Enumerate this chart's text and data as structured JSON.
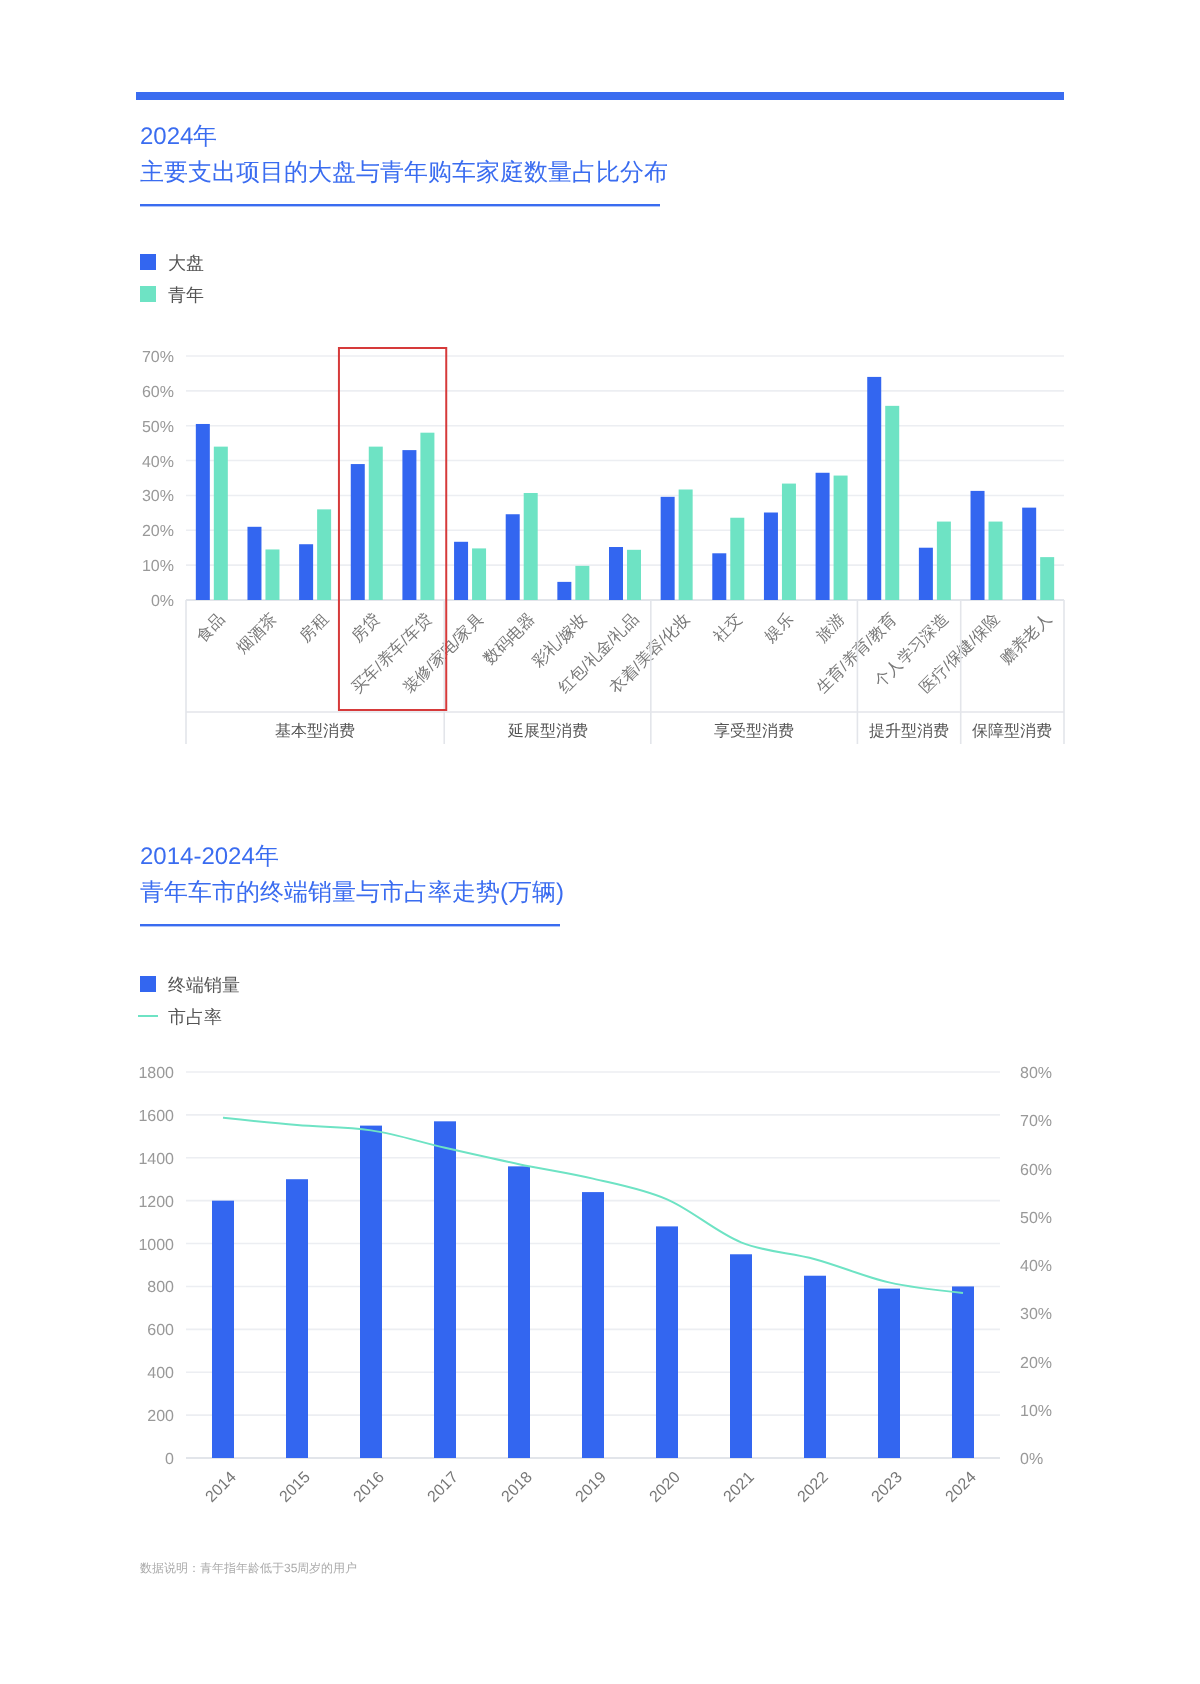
{
  "chart_data": [
    {
      "type": "bar",
      "title": "2024年",
      "subtitle": "主要支出项目的大盘与青年购车家庭数量占比分布",
      "categories": [
        "食品",
        "烟酒茶",
        "房租",
        "房贷",
        "买车/养车/车贷",
        "装修/家电/家具",
        "数码电器",
        "彩礼/嫁妆",
        "红包/礼金/礼品",
        "衣着/美容/化妆",
        "社交",
        "娱乐",
        "旅游",
        "生育/养育/教育",
        "个人学习深造",
        "医疗/保健/保险",
        "赡养老人"
      ],
      "series": [
        {
          "name": "大盘",
          "color": "#3366f0",
          "values": [
            50.5,
            21,
            16,
            39,
            43,
            16.7,
            24.6,
            5.2,
            15.2,
            29.6,
            13.4,
            25.1,
            36.5,
            64,
            15,
            31.3,
            26.5
          ]
        },
        {
          "name": "青年",
          "color": "#6ee3c4",
          "values": [
            44,
            14.5,
            26,
            44,
            48,
            14.8,
            30.7,
            9.8,
            14.4,
            31.7,
            23.6,
            33.4,
            35.7,
            55.7,
            22.5,
            22.5,
            12.3
          ]
        }
      ],
      "ylim": [
        0,
        70
      ],
      "yticks": [
        {
          "value": 0,
          "label": "0%"
        },
        {
          "value": 10,
          "label": "10%"
        },
        {
          "value": 20,
          "label": "20%"
        },
        {
          "value": 30,
          "label": "30%"
        },
        {
          "value": 40,
          "label": "40%"
        },
        {
          "value": 50,
          "label": "50%"
        },
        {
          "value": 60,
          "label": "60%"
        },
        {
          "value": 70,
          "label": "70%"
        }
      ],
      "grid": "y",
      "legend": "top left",
      "annotations": [
        "基本型消费",
        "延展型消费",
        "享受型消费",
        "提升型消费",
        "保障型消费"
      ]
    },
    {
      "type": "bar",
      "title": "2014-2024年",
      "subtitle": "青年车市的终端销量与市占率走势(万辆)",
      "categories": [
        "2014",
        "2015",
        "2016",
        "2017",
        "2018",
        "2019",
        "2020",
        "2021",
        "2022",
        "2023",
        "2024"
      ],
      "series": [
        {
          "name": "终端销量",
          "color": "#3366f0",
          "values": [
            1200,
            1300,
            1550,
            1570,
            1360,
            1240,
            1080,
            950,
            850,
            790,
            800
          ]
        },
        {
          "name": "市占率",
          "type": "line",
          "axis": "y2",
          "color": "#6ee3c4",
          "values": [
            70.5,
            69,
            67.9,
            64.3,
            60.9,
            57.9,
            53.6,
            44.7,
            41.2,
            36.4,
            34.2
          ]
        }
      ],
      "ylim": [
        0,
        1800
      ],
      "yticks": [
        0,
        200,
        400,
        600,
        800,
        1000,
        1200,
        1400,
        1600,
        1800
      ],
      "y2lim": [
        0,
        80
      ],
      "y2ticks": [
        {
          "value": 0,
          "label": "0%"
        },
        {
          "value": 10,
          "label": "10%"
        },
        {
          "value": 20,
          "label": "20%"
        },
        {
          "value": 30,
          "label": "30%"
        },
        {
          "value": 40,
          "label": "40%"
        },
        {
          "value": 50,
          "label": "50%"
        },
        {
          "value": 60,
          "label": "60%"
        },
        {
          "value": 70,
          "label": "70%"
        },
        {
          "value": 80,
          "label": "80%"
        }
      ],
      "grid": "y",
      "legend": "top left",
      "marker": "none",
      "line_style": "solid",
      "annotations": [
        "数据说明：青年指年龄低于35周岁的用户"
      ]
    }
  ]
}
